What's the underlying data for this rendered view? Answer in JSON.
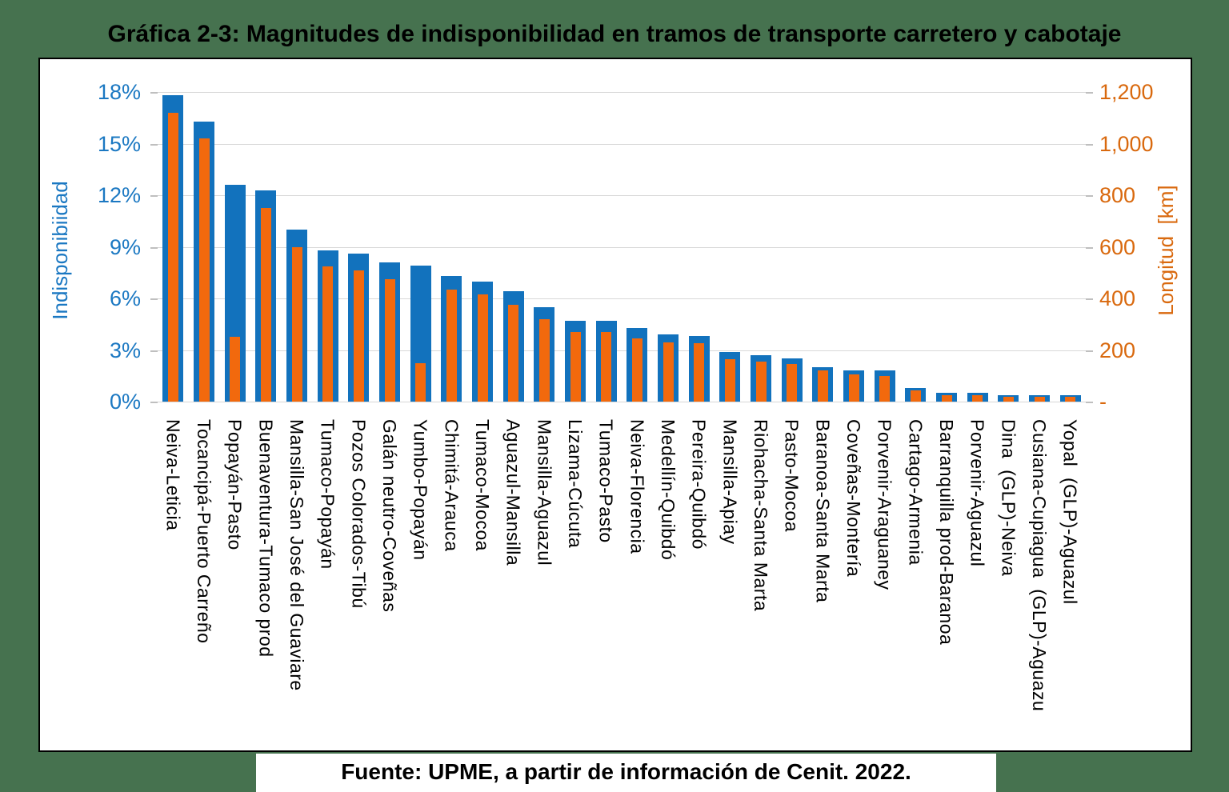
{
  "title": "Gráfica 2-3: Magnitudes de indisponibilidad en tramos de transporte carretero y cabotaje",
  "source": "Fuente: UPME, a partir de información de Cenit. 2022.",
  "colors": {
    "background_green": "#46724F",
    "chart_background": "#FFFFFF",
    "chart_border": "#000000",
    "blue_bar": "#1272BD",
    "orange_bar": "#F2690D",
    "left_axis_text": "#1B78C2",
    "right_axis_text": "#D9690E",
    "gridline": "#D8D8D8",
    "tick_mark": "#BFBFBF"
  },
  "chart_data": {
    "type": "bar",
    "title": "Gráfica 2-3: Magnitudes de indisponibilidad en tramos de transporte carretero y cabotaje",
    "grid": true,
    "legend_position": "none",
    "categories": [
      "Neiva-Leticia",
      "Tocancipá-Puerto Carreño",
      "Popayán-Pasto",
      "Buenaventura-Tumaco prod",
      "Mansilla-San José del Guaviare",
      "Tumaco-Popayán",
      "Pozos Colorados-Tibú",
      "Galán neutro-Coveñas",
      "Yumbo-Popayán",
      "Chimitá-Arauca",
      "Tumaco-Mocoa",
      "Aguazul-Mansilla",
      "Mansilla-Aguazul",
      "Lizama-Cúcuta",
      "Tumaco-Pasto",
      "Neiva-Florencia",
      "Medellín-Quibdó",
      "Pereira-Quibdó",
      "Mansilla-Apiay",
      "Riohacha-Santa Marta",
      "Pasto-Mocoa",
      "Baranoa-Santa Marta",
      "Coveñas-Montería",
      "Porvenir-Araguaney",
      "Cartago-Armenia",
      "Barranquilla prod-Baranoa",
      "Porvenir-Aguazul",
      "Dina  (GLP)-Neiva",
      "Cusiana-Cupiagua  (GLP)-Aguazu",
      "Yopal  (GLP)-Aguazul"
    ],
    "series": [
      {
        "name": "Indisponibilidad",
        "axis": "left",
        "unit": "%",
        "color": "#1272BD",
        "values": [
          17.8,
          16.3,
          12.6,
          12.3,
          10.0,
          8.8,
          8.6,
          8.1,
          7.9,
          7.3,
          7.0,
          6.4,
          5.5,
          4.7,
          4.7,
          4.3,
          3.9,
          3.8,
          2.9,
          2.7,
          2.5,
          2.0,
          1.8,
          1.8,
          0.8,
          0.5,
          0.5,
          0.35,
          0.35,
          0.35
        ]
      },
      {
        "name": "Longitud",
        "axis": "right",
        "unit": "km",
        "color": "#F2690D",
        "values": [
          1120,
          1020,
          250,
          750,
          600,
          525,
          510,
          475,
          150,
          435,
          415,
          375,
          320,
          270,
          270,
          245,
          230,
          225,
          165,
          155,
          145,
          120,
          105,
          100,
          45,
          25,
          25,
          18,
          18,
          18
        ]
      }
    ],
    "left_axis": {
      "label": "Indisponibiidad",
      "ticks": [
        "18%",
        "15%",
        "12%",
        "9%",
        "6%",
        "3%",
        "0%"
      ],
      "min": 0,
      "max": 18
    },
    "right_axis": {
      "label": "Longitud  [km]",
      "ticks": [
        "1,200",
        "1,000",
        "800",
        "600",
        "400",
        "200",
        "-"
      ],
      "min": 0,
      "max": 1200
    }
  }
}
